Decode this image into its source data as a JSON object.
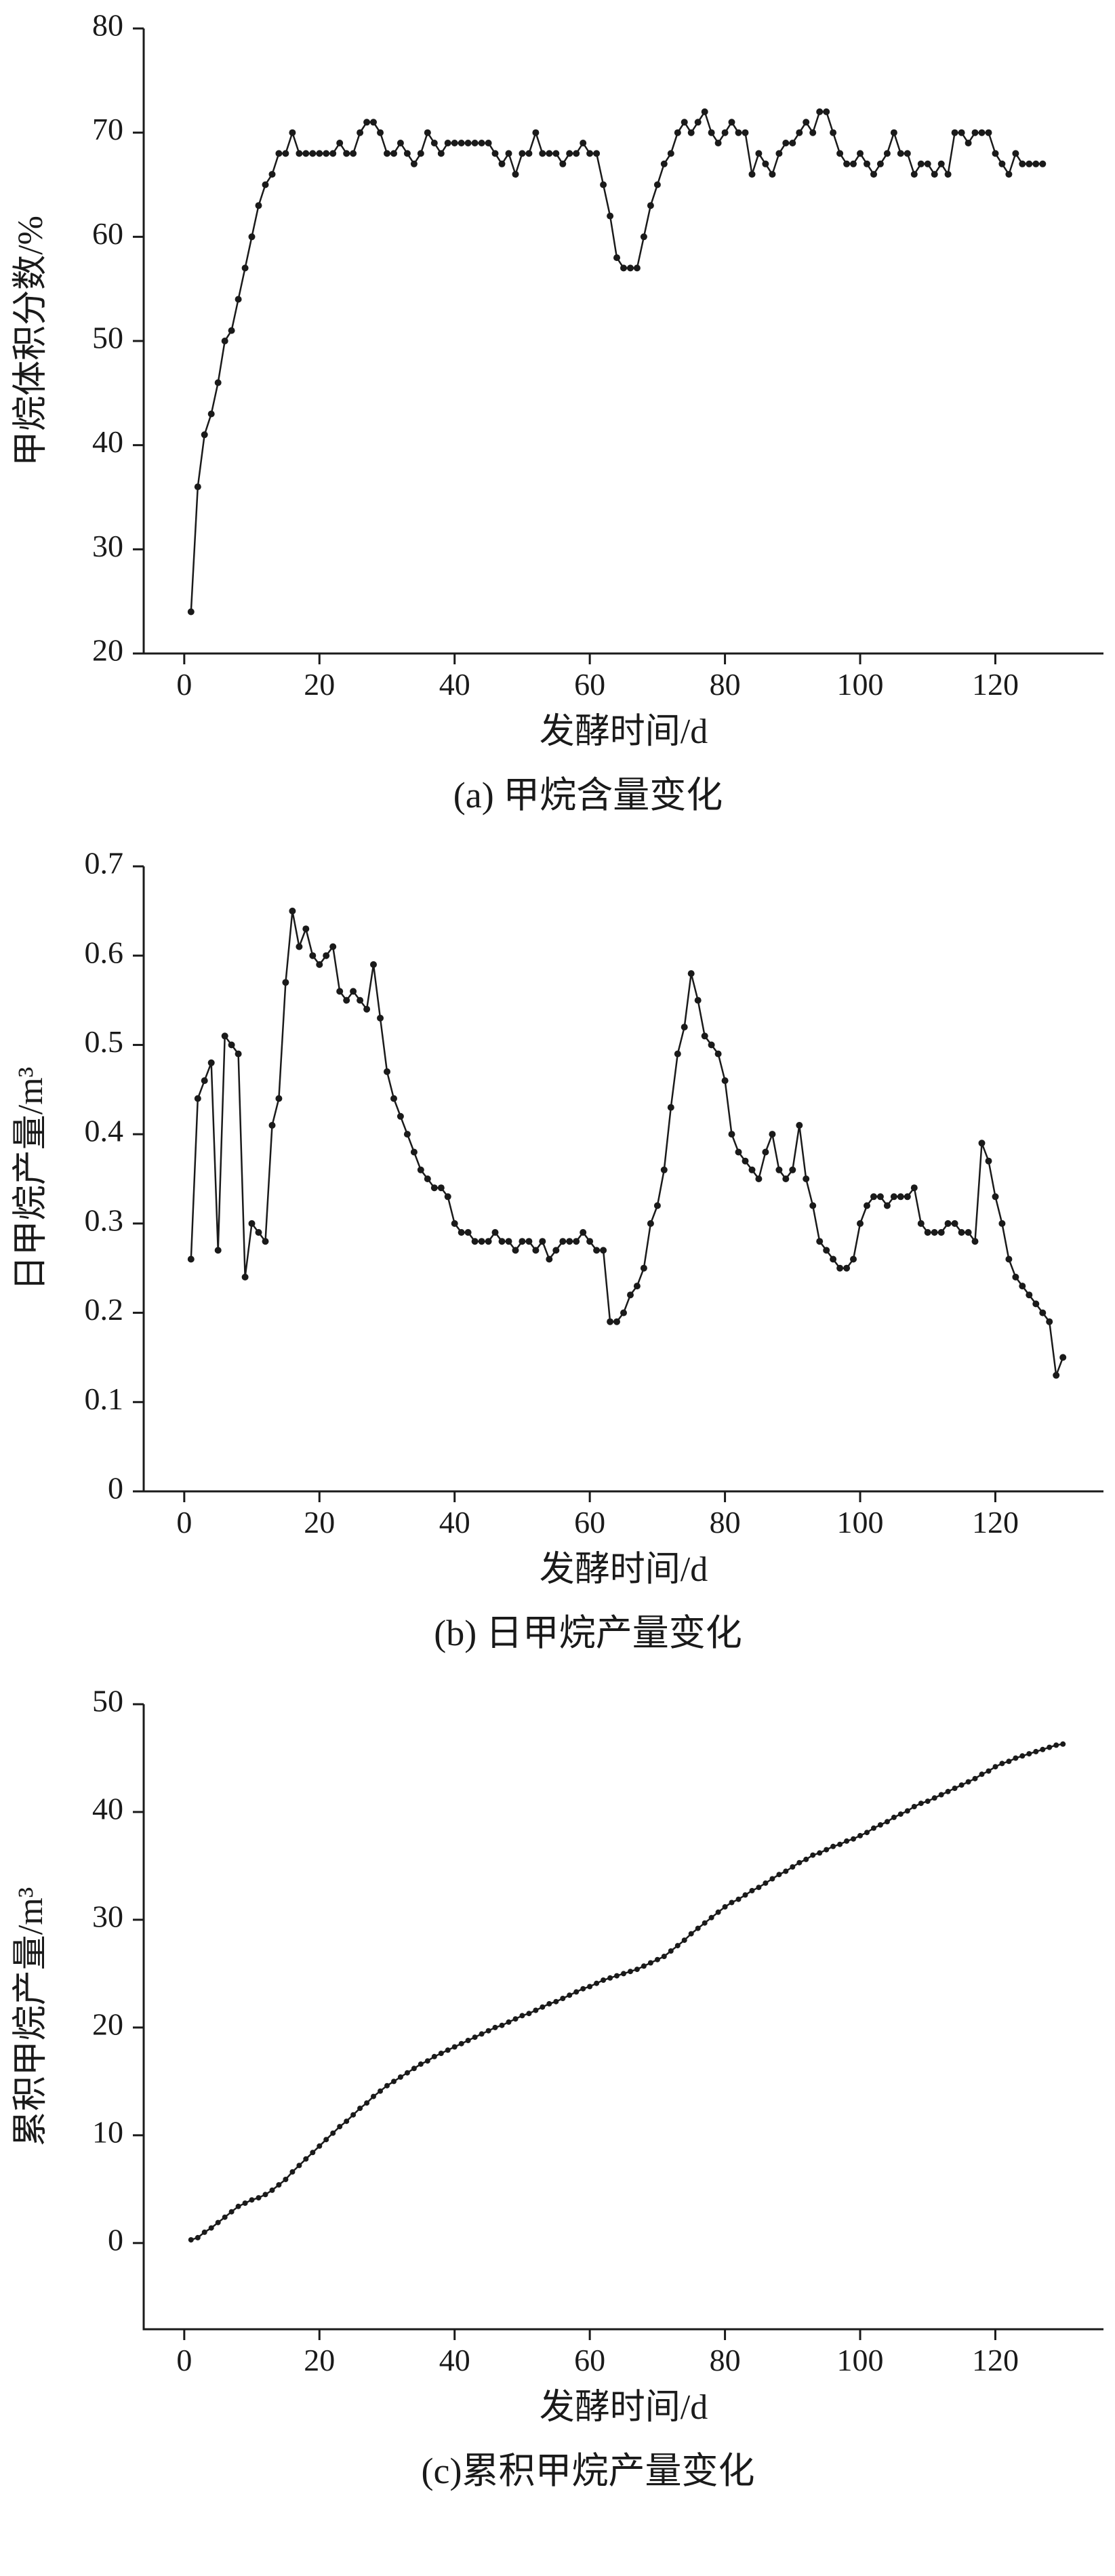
{
  "page": {
    "background": "#ffffff",
    "ink_color": "#1a1a1a"
  },
  "chart_data": [
    {
      "id": "a",
      "type": "line",
      "caption": "(a) 甲烷含量变化",
      "xlabel": "发酵时间/d",
      "ylabel": "甲烷体积分数/%",
      "xlim": [
        -6,
        136
      ],
      "ylim": [
        20,
        80
      ],
      "xticks": [
        0,
        20,
        40,
        60,
        80,
        100,
        120
      ],
      "xtick_labels": [
        "0",
        "20",
        "40",
        "60",
        "80",
        "100",
        "120"
      ],
      "yticks": [
        20,
        30,
        40,
        50,
        60,
        70,
        80
      ],
      "ytick_labels": [
        "20",
        "30",
        "40",
        "50",
        "60",
        "70",
        "80"
      ],
      "grid": false,
      "legend": "none",
      "marker": "circle",
      "marker_radius": 5,
      "x_start": 1,
      "x_step": 1,
      "y": [
        24,
        36,
        41,
        43,
        46,
        50,
        51,
        54,
        57,
        60,
        63,
        65,
        66,
        68,
        68,
        70,
        68,
        68,
        68,
        68,
        68,
        68,
        69,
        68,
        68,
        70,
        71,
        71,
        70,
        68,
        68,
        69,
        68,
        67,
        68,
        70,
        69,
        68,
        69,
        69,
        69,
        69,
        69,
        69,
        69,
        68,
        67,
        68,
        66,
        68,
        68,
        70,
        68,
        68,
        68,
        67,
        68,
        68,
        69,
        68,
        68,
        65,
        62,
        58,
        57,
        57,
        57,
        60,
        63,
        65,
        67,
        68,
        70,
        71,
        70,
        71,
        72,
        70,
        69,
        70,
        71,
        70,
        70,
        66,
        68,
        67,
        66,
        68,
        69,
        69,
        70,
        71,
        70,
        72,
        72,
        70,
        68,
        67,
        67,
        68,
        67,
        66,
        67,
        68,
        70,
        68,
        68,
        66,
        67,
        67,
        66,
        67,
        66,
        70,
        70,
        69,
        70,
        70,
        70,
        68,
        67,
        66,
        68,
        67,
        67,
        67,
        67
      ]
    },
    {
      "id": "b",
      "type": "line",
      "caption": "(b) 日甲烷产量变化",
      "xlabel": "发酵时间/d",
      "ylabel": "日甲烷产量/m³",
      "xlim": [
        -6,
        136
      ],
      "ylim": [
        0,
        0.7
      ],
      "xticks": [
        0,
        20,
        40,
        60,
        80,
        100,
        120
      ],
      "xtick_labels": [
        "0",
        "20",
        "40",
        "60",
        "80",
        "100",
        "120"
      ],
      "yticks": [
        0,
        0.1,
        0.2,
        0.3,
        0.4,
        0.5,
        0.6,
        0.7
      ],
      "ytick_labels": [
        "0",
        "0.1",
        "0.2",
        "0.3",
        "0.4",
        "0.5",
        "0.6",
        "0.7"
      ],
      "grid": false,
      "legend": "none",
      "marker": "circle",
      "marker_radius": 5,
      "x_start": 1,
      "x_step": 1,
      "y": [
        0.26,
        0.44,
        0.46,
        0.48,
        0.27,
        0.51,
        0.5,
        0.49,
        0.24,
        0.3,
        0.29,
        0.28,
        0.41,
        0.44,
        0.57,
        0.65,
        0.61,
        0.63,
        0.6,
        0.59,
        0.6,
        0.61,
        0.56,
        0.55,
        0.56,
        0.55,
        0.54,
        0.59,
        0.53,
        0.47,
        0.44,
        0.42,
        0.4,
        0.38,
        0.36,
        0.35,
        0.34,
        0.34,
        0.33,
        0.3,
        0.29,
        0.29,
        0.28,
        0.28,
        0.28,
        0.29,
        0.28,
        0.28,
        0.27,
        0.28,
        0.28,
        0.27,
        0.28,
        0.26,
        0.27,
        0.28,
        0.28,
        0.28,
        0.29,
        0.28,
        0.27,
        0.27,
        0.19,
        0.19,
        0.2,
        0.22,
        0.23,
        0.25,
        0.3,
        0.32,
        0.36,
        0.43,
        0.49,
        0.52,
        0.58,
        0.55,
        0.51,
        0.5,
        0.49,
        0.46,
        0.4,
        0.38,
        0.37,
        0.36,
        0.35,
        0.38,
        0.4,
        0.36,
        0.35,
        0.36,
        0.41,
        0.35,
        0.32,
        0.28,
        0.27,
        0.26,
        0.25,
        0.25,
        0.26,
        0.3,
        0.32,
        0.33,
        0.33,
        0.32,
        0.33,
        0.33,
        0.33,
        0.34,
        0.3,
        0.29,
        0.29,
        0.29,
        0.3,
        0.3,
        0.29,
        0.29,
        0.28,
        0.39,
        0.37,
        0.33,
        0.3,
        0.26,
        0.24,
        0.23,
        0.22,
        0.21,
        0.2,
        0.19,
        0.13,
        0.15
      ]
    },
    {
      "id": "c",
      "type": "line",
      "caption": "(c)累积甲烷产量变化",
      "xlabel": "发酵时间/d",
      "ylabel": "累积甲烷产量/m³",
      "xlim": [
        -6,
        136
      ],
      "ylim": [
        -8,
        50
      ],
      "xticks": [
        0,
        20,
        40,
        60,
        80,
        100,
        120
      ],
      "xtick_labels": [
        "0",
        "20",
        "40",
        "60",
        "80",
        "100",
        "120"
      ],
      "yticks": [
        0,
        10,
        20,
        30,
        40,
        50
      ],
      "ytick_labels": [
        "0",
        "10",
        "20",
        "30",
        "40",
        "50"
      ],
      "grid": false,
      "legend": "none",
      "marker": "circle",
      "marker_radius": 4,
      "x_start": 1,
      "x_step": 1,
      "y": [
        0.3,
        0.5,
        1.0,
        1.4,
        1.9,
        2.4,
        2.9,
        3.4,
        3.7,
        4.0,
        4.2,
        4.5,
        4.9,
        5.4,
        5.9,
        6.6,
        7.2,
        7.8,
        8.4,
        9.0,
        9.6,
        10.2,
        10.8,
        11.3,
        11.9,
        12.5,
        13.0,
        13.6,
        14.1,
        14.6,
        15.0,
        15.4,
        15.8,
        16.2,
        16.6,
        16.9,
        17.3,
        17.6,
        17.9,
        18.2,
        18.5,
        18.8,
        19.1,
        19.4,
        19.7,
        20.0,
        20.2,
        20.5,
        20.8,
        21.1,
        21.3,
        21.6,
        21.9,
        22.2,
        22.4,
        22.7,
        23.0,
        23.3,
        23.6,
        23.8,
        24.1,
        24.4,
        24.6,
        24.8,
        25.0,
        25.2,
        25.4,
        25.7,
        26.0,
        26.3,
        26.6,
        27.1,
        27.6,
        28.1,
        28.7,
        29.2,
        29.7,
        30.2,
        30.7,
        31.2,
        31.6,
        31.9,
        32.3,
        32.7,
        33.0,
        33.4,
        33.8,
        34.2,
        34.5,
        34.9,
        35.3,
        35.6,
        36.0,
        36.2,
        36.5,
        36.8,
        37.0,
        37.3,
        37.5,
        37.8,
        38.1,
        38.5,
        38.8,
        39.1,
        39.5,
        39.8,
        40.1,
        40.5,
        40.8,
        41.0,
        41.3,
        41.6,
        41.9,
        42.2,
        42.5,
        42.8,
        43.1,
        43.5,
        43.8,
        44.2,
        44.5,
        44.7,
        45.0,
        45.2,
        45.4,
        45.6,
        45.8,
        46.0,
        46.2,
        46.3
      ]
    }
  ]
}
